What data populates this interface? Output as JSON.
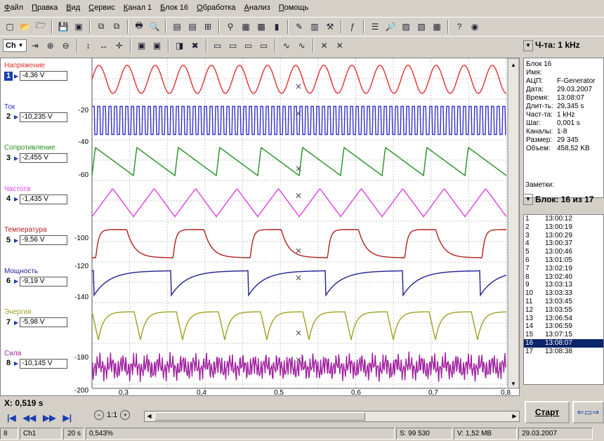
{
  "menu": [
    "Файл",
    "Правка",
    "Вид",
    "Сервис",
    "Канал 1",
    "Блок 16",
    "Обработка",
    "Анализ",
    "Помощь"
  ],
  "toolbar": {
    "channel_select": "Ch",
    "rate_label": "Ч-та: 1 kHz"
  },
  "channels": [
    {
      "name": "Напряжение",
      "num": "1",
      "value": "-4,36 V",
      "color": "#e03030"
    },
    {
      "name": "Ток",
      "num": "2",
      "value": "-10,235 V",
      "color": "#3030d0"
    },
    {
      "name": "Сопротивление",
      "num": "3",
      "value": "-2,455 V",
      "color": "#209020"
    },
    {
      "name": "Частота",
      "num": "4",
      "value": "-1,435 V",
      "color": "#e040e0"
    },
    {
      "name": "Температура",
      "num": "5",
      "value": "-9,56 V",
      "color": "#b02020"
    },
    {
      "name": "Мощность",
      "num": "6",
      "value": "-9,19 V",
      "color": "#202090"
    },
    {
      "name": "Энергия",
      "num": "7",
      "value": "-5,98 V",
      "color": "#a0a020"
    },
    {
      "name": "Сила",
      "num": "8",
      "value": "-10,145 V",
      "color": "#a020a0"
    }
  ],
  "y_ticks": [
    "-20",
    "-40",
    "-60",
    "-100",
    "-120",
    "-140",
    "-180",
    "-200"
  ],
  "x_ticks": [
    "0,3",
    "0,4",
    "0,5",
    "0,6",
    "0,7",
    "0,8"
  ],
  "info": {
    "title": "Блок 16",
    "name_label": "Имя:",
    "rows": [
      {
        "k": "АЦП:",
        "v": "F-Generator"
      },
      {
        "k": "Дата:",
        "v": "29.03.2007"
      },
      {
        "k": "Время:",
        "v": "13:08:07"
      },
      {
        "k": "Длит-ть:",
        "v": "29,345 s"
      },
      {
        "k": "Част-та:",
        "v": "1 kHz"
      },
      {
        "k": "Шаг:",
        "v": "0,001 s"
      },
      {
        "k": "Каналы:",
        "v": "1-8"
      },
      {
        "k": "Размер:",
        "v": "29 345"
      },
      {
        "k": "Объем:",
        "v": "458,52 KB"
      }
    ]
  },
  "notes_label": "Заметки:",
  "block_select": "Блок: 16 из 17",
  "blocks": [
    {
      "n": "1",
      "t": "13:00:12"
    },
    {
      "n": "2",
      "t": "13:00:19"
    },
    {
      "n": "3",
      "t": "13:00:29"
    },
    {
      "n": "4",
      "t": "13:00:37"
    },
    {
      "n": "5",
      "t": "13:00:46"
    },
    {
      "n": "6",
      "t": "13:01:05"
    },
    {
      "n": "7",
      "t": "13:02:19"
    },
    {
      "n": "8",
      "t": "13:02:40"
    },
    {
      "n": "9",
      "t": "13:03:13"
    },
    {
      "n": "10",
      "t": "13:03:33"
    },
    {
      "n": "11",
      "t": "13:03:45"
    },
    {
      "n": "12",
      "t": "13:03:55"
    },
    {
      "n": "13",
      "t": "13:06:54"
    },
    {
      "n": "14",
      "t": "13:06:59"
    },
    {
      "n": "15",
      "t": "13:07:15"
    },
    {
      "n": "16",
      "t": "13:08:07"
    },
    {
      "n": "17",
      "t": "13:08:38"
    }
  ],
  "selected_block": "16",
  "x_readout": "X: 0,519 s",
  "zoom_ratio": "1:1",
  "start_button": "Старт",
  "status": {
    "block": "8",
    "channel": "Ch1",
    "duration": "20 s",
    "percent": "0,543%",
    "samples": "S: 99 530",
    "volume": "V: 1,52 MB",
    "date": "29.03.2007"
  }
}
